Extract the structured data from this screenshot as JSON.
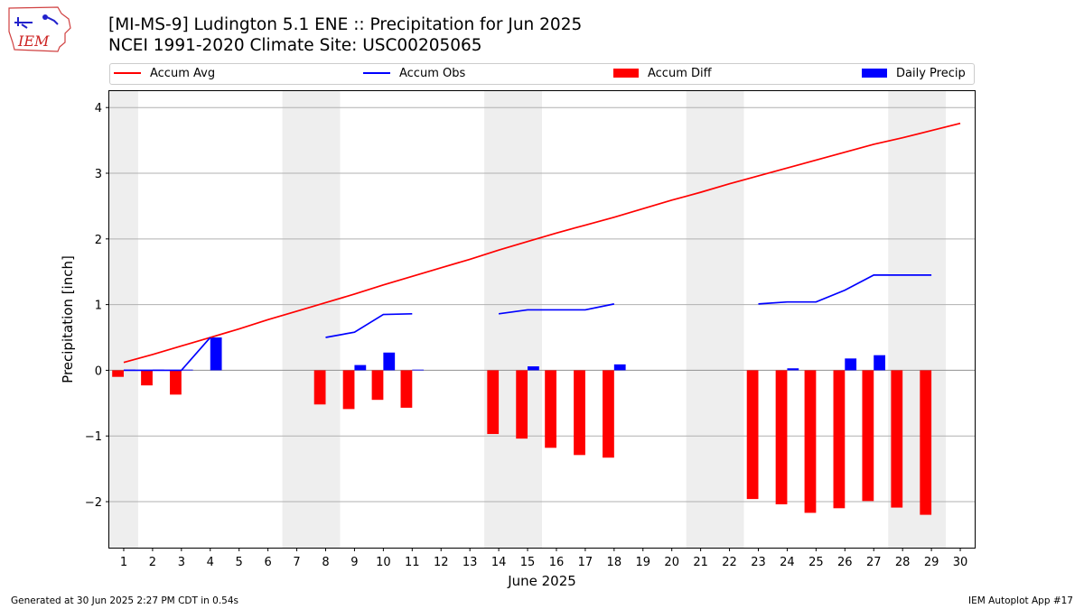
{
  "header": {
    "title_line1": "[MI-MS-9] Ludington 5.1 ENE :: Precipitation for Jun 2025",
    "title_line2": "NCEI 1991-2020 Climate Site: USC00205065",
    "logo_text": "IEM"
  },
  "footer": {
    "left": "Generated at 30 Jun 2025 2:27 PM CDT in 0.54s",
    "right": "IEM Autoplot App #17"
  },
  "colors": {
    "accum_avg": "#ff0000",
    "accum_obs": "#0000ff",
    "accum_diff": "#ff0000",
    "daily_precip": "#0000ff",
    "weekend_shade": "#eeeeee",
    "grid": "#b0b0b0"
  },
  "chart_data": {
    "type": "bar",
    "xlabel": "June 2025",
    "ylabel": "Precipitation [inch]",
    "xlim": [
      0.5,
      30.5
    ],
    "ylim": [
      -2.7,
      4.25
    ],
    "yticks": [
      -2,
      -1,
      0,
      1,
      2,
      3,
      4
    ],
    "ytick_labels": [
      "−2",
      "−1",
      "0",
      "1",
      "2",
      "3",
      "4"
    ],
    "xticks": [
      1,
      2,
      3,
      4,
      5,
      6,
      7,
      8,
      9,
      10,
      11,
      12,
      13,
      14,
      15,
      16,
      17,
      18,
      19,
      20,
      21,
      22,
      23,
      24,
      25,
      26,
      27,
      28,
      29,
      30
    ],
    "grid": "horizontal",
    "legend_position": "top",
    "weekend_spans": [
      [
        0.5,
        1.5
      ],
      [
        6.5,
        8.5
      ],
      [
        13.5,
        15.5
      ],
      [
        20.5,
        22.5
      ],
      [
        27.5,
        29.5
      ]
    ],
    "legend": [
      {
        "label": "Accum Avg",
        "kind": "line",
        "color": "#ff0000"
      },
      {
        "label": "Accum Obs",
        "kind": "line",
        "color": "#0000ff"
      },
      {
        "label": "Accum Diff",
        "kind": "patch",
        "color": "#ff0000"
      },
      {
        "label": "Daily Precip",
        "kind": "patch",
        "color": "#0000ff"
      }
    ],
    "series": [
      {
        "name": "Accum Avg",
        "type": "line",
        "x": [
          1,
          2,
          3,
          4,
          5,
          6,
          7,
          8,
          9,
          10,
          11,
          12,
          13,
          14,
          15,
          16,
          17,
          18,
          19,
          20,
          21,
          22,
          23,
          24,
          25,
          26,
          27,
          28,
          29,
          30
        ],
        "values": [
          0.12,
          0.24,
          0.37,
          0.5,
          0.63,
          0.77,
          0.9,
          1.03,
          1.16,
          1.3,
          1.43,
          1.56,
          1.69,
          1.83,
          1.96,
          2.09,
          2.21,
          2.33,
          2.46,
          2.59,
          2.71,
          2.84,
          2.96,
          3.08,
          3.2,
          3.32,
          3.44,
          3.54,
          3.65,
          3.76
        ]
      },
      {
        "name": "Accum Obs",
        "type": "line",
        "segments": [
          {
            "x": [
              1,
              2,
              3,
              4
            ],
            "values": [
              0.0,
              0.0,
              0.0,
              0.5
            ]
          },
          {
            "x": [
              8,
              9,
              10,
              11
            ],
            "values": [
              0.5,
              0.58,
              0.85,
              0.86
            ]
          },
          {
            "x": [
              14,
              15,
              16,
              17,
              18
            ],
            "values": [
              0.86,
              0.92,
              0.92,
              0.92,
              1.01
            ]
          },
          {
            "x": [
              23,
              24,
              25,
              26,
              27,
              28,
              29
            ],
            "values": [
              1.01,
              1.04,
              1.04,
              1.22,
              1.45,
              1.45,
              1.45
            ]
          }
        ]
      },
      {
        "name": "Accum Diff",
        "type": "bar",
        "x": [
          1,
          2,
          3,
          8,
          9,
          10,
          11,
          14,
          15,
          16,
          17,
          18,
          23,
          24,
          25,
          26,
          27,
          28,
          29
        ],
        "values": [
          -0.1,
          -0.23,
          -0.37,
          -0.52,
          -0.59,
          -0.45,
          -0.57,
          -0.97,
          -1.04,
          -1.18,
          -1.29,
          -1.33,
          -1.96,
          -2.04,
          -2.17,
          -2.1,
          -1.99,
          -2.09,
          -2.2
        ]
      },
      {
        "name": "Daily Precip",
        "type": "bar",
        "x": [
          1,
          2,
          3,
          4,
          9,
          10,
          11,
          15,
          18,
          24,
          26,
          27
        ],
        "values": [
          0.01,
          0.01,
          0.01,
          0.5,
          0.08,
          0.27,
          0.01,
          0.06,
          0.09,
          0.03,
          0.18,
          0.23
        ]
      }
    ]
  }
}
